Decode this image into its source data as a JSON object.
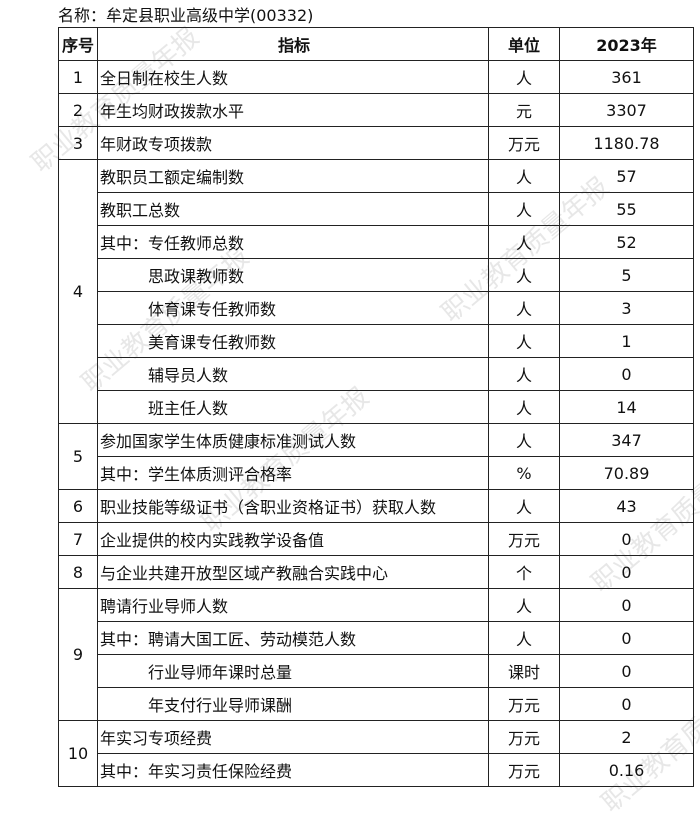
{
  "title": "名称：牟定县职业高级中学(00332)",
  "watermark": "职业教育质量年报",
  "header": {
    "no": "序号",
    "indicator": "指标",
    "unit": "单位",
    "year": "2023年"
  },
  "groups": [
    {
      "no": "1",
      "rows": [
        {
          "indicator": "全日制在校生人数",
          "unit": "人",
          "value": "361"
        }
      ]
    },
    {
      "no": "2",
      "rows": [
        {
          "indicator": "年生均财政拨款水平",
          "unit": "元",
          "value": "3307"
        }
      ]
    },
    {
      "no": "3",
      "rows": [
        {
          "indicator": "年财政专项拨款",
          "unit": "万元",
          "value": "1180.78"
        }
      ]
    },
    {
      "no": "4",
      "rows": [
        {
          "indicator": "教职员工额定编制数",
          "unit": "人",
          "value": "57"
        },
        {
          "indicator": "教职工总数",
          "unit": "人",
          "value": "55"
        },
        {
          "indicator": "其中：专任教师总数",
          "unit": "人",
          "value": "52"
        },
        {
          "indicator": "思政课教师数",
          "unit": "人",
          "value": "5",
          "indent": true
        },
        {
          "indicator": "体育课专任教师数",
          "unit": "人",
          "value": "3",
          "indent": true
        },
        {
          "indicator": "美育课专任教师数",
          "unit": "人",
          "value": "1",
          "indent": true
        },
        {
          "indicator": "辅导员人数",
          "unit": "人",
          "value": "0",
          "indent": true
        },
        {
          "indicator": "班主任人数",
          "unit": "人",
          "value": "14",
          "indent": true
        }
      ]
    },
    {
      "no": "5",
      "rows": [
        {
          "indicator": "参加国家学生体质健康标准测试人数",
          "unit": "人",
          "value": "347"
        },
        {
          "indicator": "其中：学生体质测评合格率",
          "unit": "%",
          "value": "70.89"
        }
      ]
    },
    {
      "no": "6",
      "rows": [
        {
          "indicator": "职业技能等级证书（含职业资格证书）获取人数",
          "unit": "人",
          "value": "43"
        }
      ]
    },
    {
      "no": "7",
      "rows": [
        {
          "indicator": "企业提供的校内实践教学设备值",
          "unit": "万元",
          "value": "0"
        }
      ]
    },
    {
      "no": "8",
      "rows": [
        {
          "indicator": "与企业共建开放型区域产教融合实践中心",
          "unit": "个",
          "value": "0"
        }
      ]
    },
    {
      "no": "9",
      "rows": [
        {
          "indicator": "聘请行业导师人数",
          "unit": "人",
          "value": "0"
        },
        {
          "indicator": "其中：聘请大国工匠、劳动模范人数",
          "unit": "人",
          "value": "0"
        },
        {
          "indicator": "行业导师年课时总量",
          "unit": "课时",
          "value": "0",
          "indent": true
        },
        {
          "indicator": "年支付行业导师课酬",
          "unit": "万元",
          "value": "0",
          "indent": true
        }
      ]
    },
    {
      "no": "10",
      "rows": [
        {
          "indicator": "年实习专项经费",
          "unit": "万元",
          "value": "2"
        },
        {
          "indicator": "其中：年实习责任保险经费",
          "unit": "万元",
          "value": "0.16"
        }
      ]
    }
  ]
}
